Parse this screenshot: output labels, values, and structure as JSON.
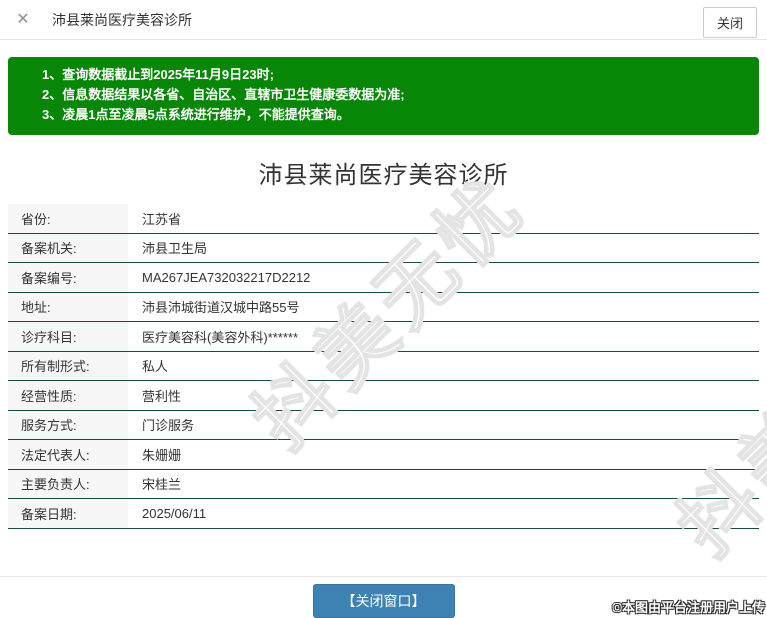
{
  "header": {
    "close_icon": "✕",
    "title": "沛县莱尚医疗美容诊所",
    "close_button_label": "关闭"
  },
  "notice": {
    "lines": [
      "1、查询数据截止到2025年11月9日23时;",
      "2、信息数据结果以各省、自治区、直辖市卫生健康委数据为准;",
      "3、凌晨1点至凌晨5点系统进行维护，不能提供查询。"
    ]
  },
  "main": {
    "title": "沛县莱尚医疗美容诊所",
    "fields": [
      {
        "label": "省份:",
        "value": "江苏省"
      },
      {
        "label": "备案机关:",
        "value": "沛县卫生局"
      },
      {
        "label": "备案编号:",
        "value": "MA267JEA732032217D2212"
      },
      {
        "label": "地址:",
        "value": "沛县沛城街道汉城中路55号"
      },
      {
        "label": "诊疗科目:",
        "value": "医疗美容科(美容外科)******"
      },
      {
        "label": "所有制形式:",
        "value": "私人"
      },
      {
        "label": "经营性质:",
        "value": "营利性"
      },
      {
        "label": "服务方式:",
        "value": "门诊服务"
      },
      {
        "label": "法定代表人:",
        "value": "朱姗姗"
      },
      {
        "label": "主要负责人:",
        "value": "宋桂兰"
      },
      {
        "label": "备案日期:",
        "value": "2025/06/11"
      }
    ]
  },
  "footer": {
    "close_window_button": "【关闭窗口】"
  },
  "watermark": {
    "text": "抖美无忧"
  },
  "copyright": "©本图由平台注册用户上传",
  "colors": {
    "notice_green": "#088608",
    "row_border": "#1d4a3e",
    "button_blue": "#3d82b2",
    "label_bg": "#f7f7f7"
  }
}
